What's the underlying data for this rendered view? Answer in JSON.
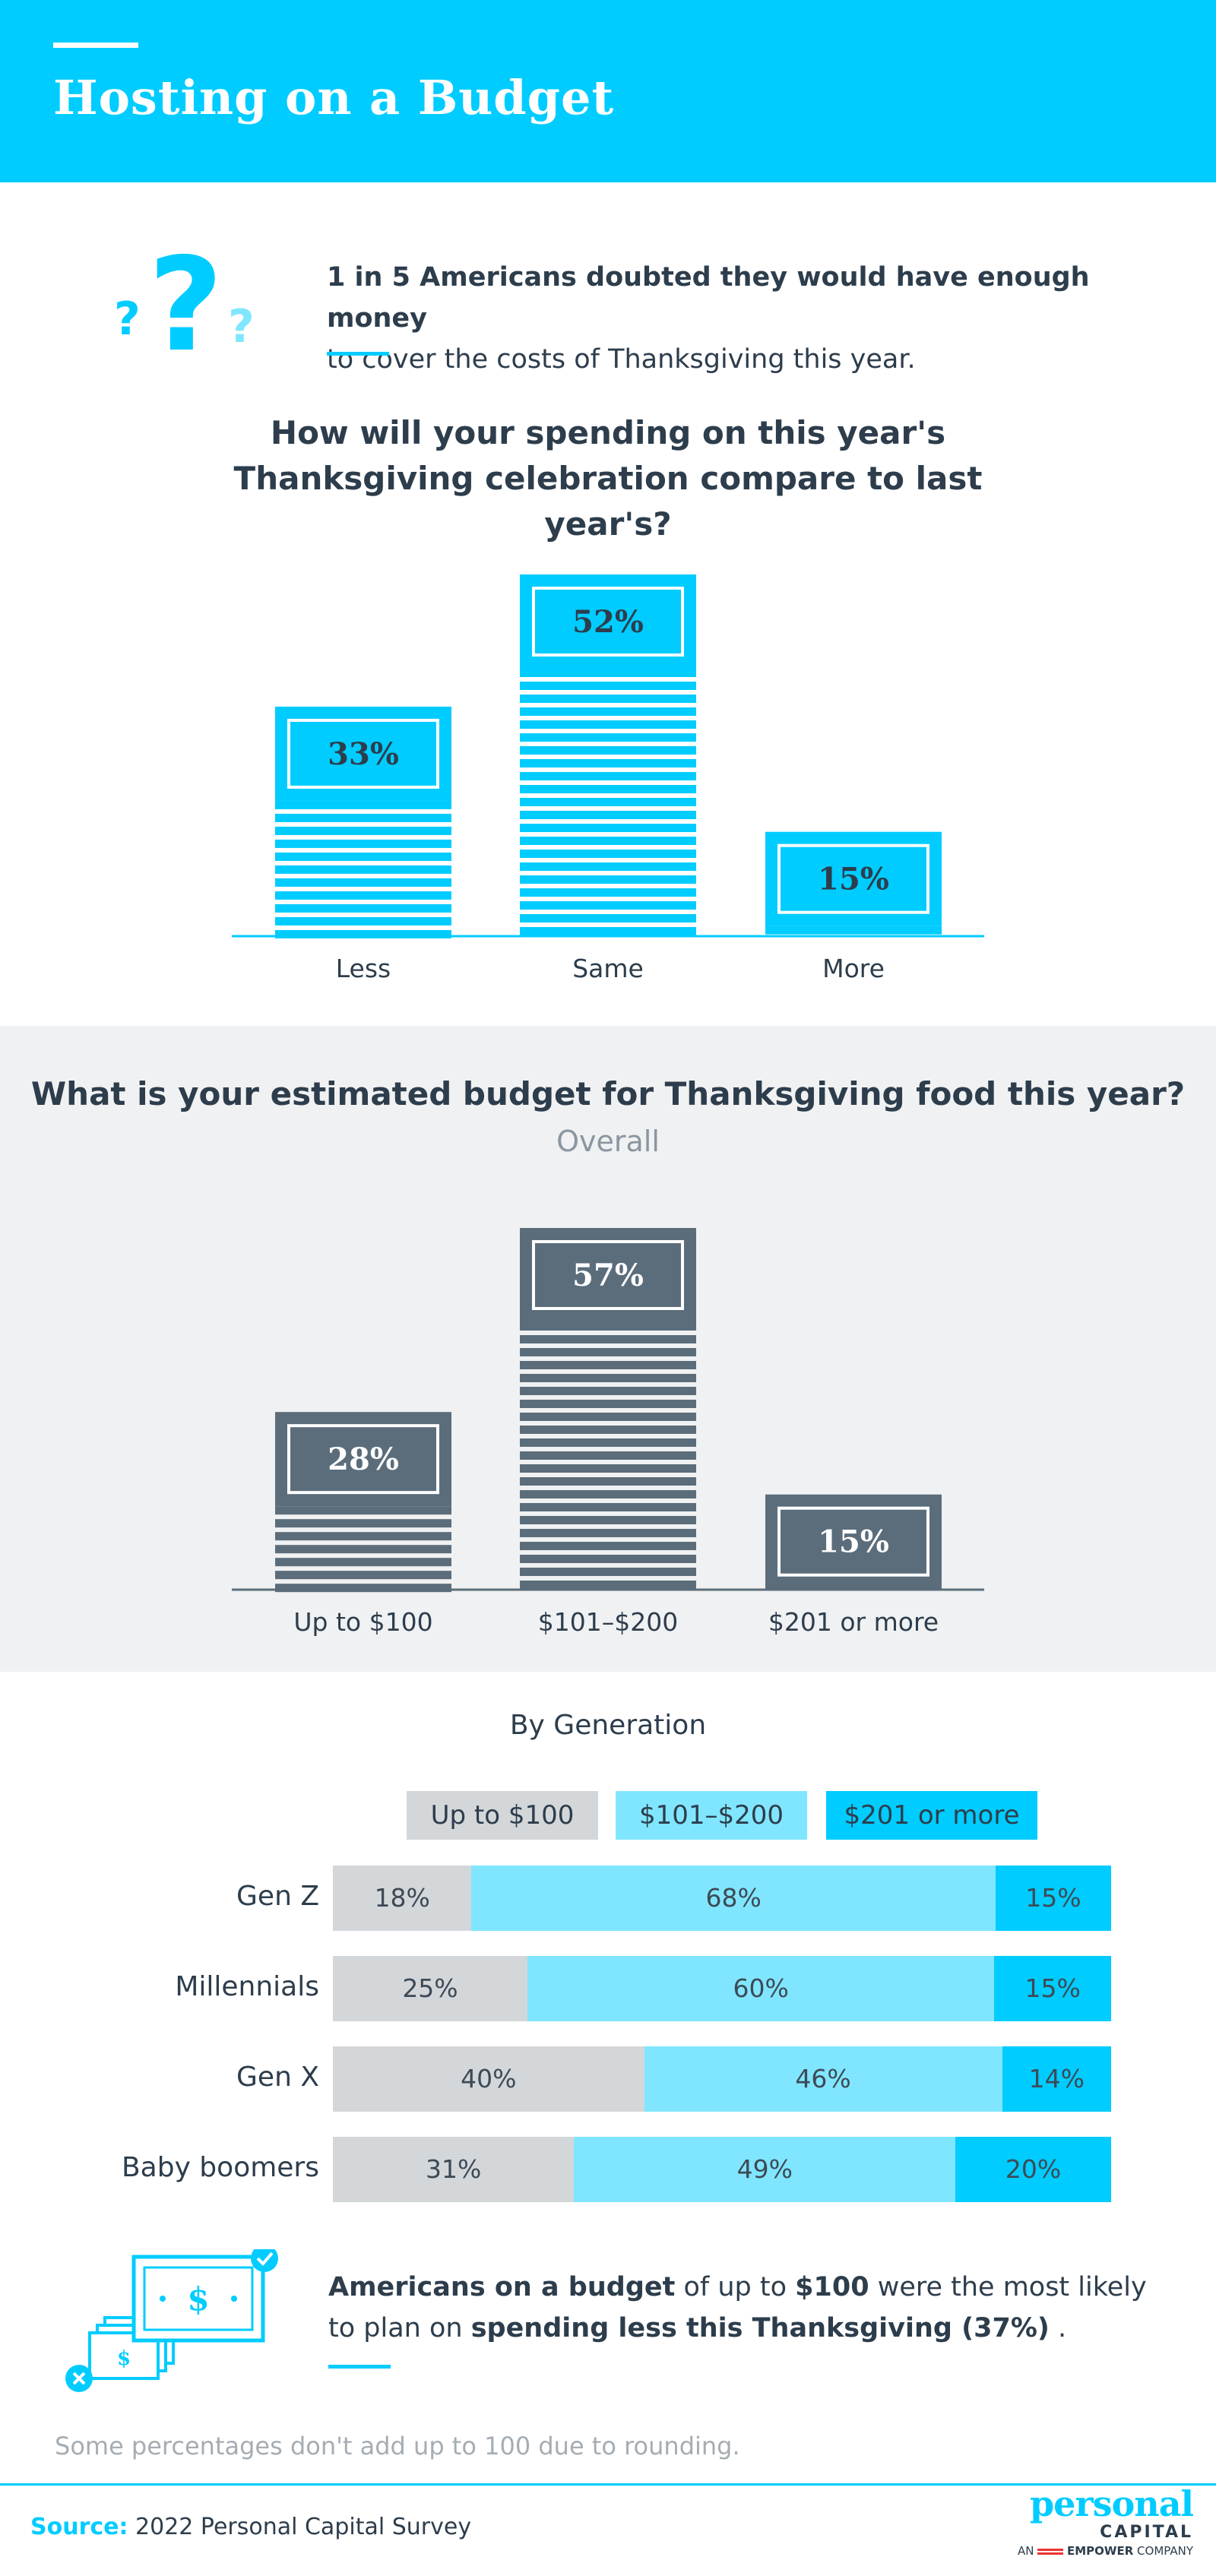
{
  "header": {
    "title": "Hosting on a Budget"
  },
  "intro": {
    "bold": "1 in 5 Americans doubted they would have enough money",
    "rest": "to cover the costs of Thanksgiving this year."
  },
  "colors": {
    "cyan": "#00ccff",
    "light_cyan": "#80e6ff",
    "slate": "#5b6d7b",
    "gray": "#d4d7da",
    "text": "#2d3d4c"
  },
  "chart_data": [
    {
      "type": "bar",
      "title": "How will your spending on this year's Thanksgiving celebration compare to last year's?",
      "categories": [
        "Less",
        "Same",
        "More"
      ],
      "values": [
        33,
        52,
        15
      ],
      "labels": [
        "33%",
        "52%",
        "15%"
      ],
      "ylim": [
        0,
        52
      ]
    },
    {
      "type": "bar",
      "title": "What is your estimated budget for Thanksgiving food this year?",
      "subtitle": "Overall",
      "categories": [
        "Up to $100",
        "$101–$200",
        "$201 or more"
      ],
      "values": [
        28,
        57,
        15
      ],
      "labels": [
        "28%",
        "57%",
        "15%"
      ],
      "ylim": [
        0,
        57
      ]
    },
    {
      "type": "bar",
      "title": "By Generation",
      "stacked": true,
      "orientation": "horizontal",
      "categories": [
        "Gen Z",
        "Millennials",
        "Gen X",
        "Baby boomers"
      ],
      "series": [
        {
          "name": "Up to $100",
          "values": [
            18,
            25,
            40,
            31
          ],
          "labels": [
            "18%",
            "25%",
            "40%",
            "31%"
          ]
        },
        {
          "name": "$101–$200",
          "values": [
            68,
            60,
            46,
            49
          ],
          "labels": [
            "68%",
            "60%",
            "46%",
            "49%"
          ]
        },
        {
          "name": "$201 or more",
          "values": [
            15,
            15,
            14,
            20
          ],
          "labels": [
            "15%",
            "15%",
            "14%",
            "20%"
          ]
        }
      ]
    }
  ],
  "callout": {
    "p1_bold": "Americans on a budget",
    "p2": " of up to ",
    "p3_bold": "$100",
    "p4": " were the most likely",
    "p5": "to plan on ",
    "p6_bold": "spending less this Thanksgiving (37%)",
    "p7": " ."
  },
  "note": "Some percentages don't add up to 100 due to rounding.",
  "source": {
    "label": "Source:",
    "text": " 2022 Personal Capital Survey"
  },
  "logo": {
    "line1": "personal",
    "line2": "CAPITAL",
    "line3_pre": "AN",
    "line3_brand": "EMPOWER",
    "line3_post": "COMPANY"
  }
}
